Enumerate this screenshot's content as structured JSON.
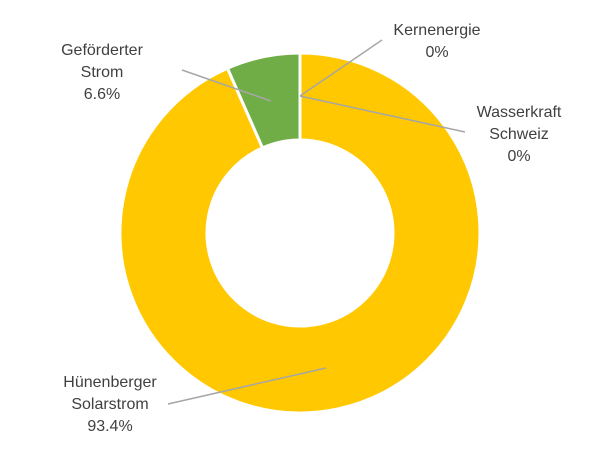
{
  "chart_data": {
    "type": "pie",
    "variant": "donut",
    "title": "",
    "legend": "none",
    "slices": [
      {
        "label_lines": [
          "Kernenergie"
        ],
        "value_label": "0%",
        "value": 0,
        "color": "#4472C4"
      },
      {
        "label_lines": [
          "Wasserkraft",
          "Schweiz"
        ],
        "value_label": "0%",
        "value": 0,
        "color": "#ED7D31"
      },
      {
        "label_lines": [
          "Hünenberger",
          "Solarstrom"
        ],
        "value_label": "93.4%",
        "value": 93.4,
        "color": "#FFC800"
      },
      {
        "label_lines": [
          "Geförderter",
          "Strom"
        ],
        "value_label": "6.6%",
        "value": 6.6,
        "color": "#70AD47"
      }
    ]
  }
}
